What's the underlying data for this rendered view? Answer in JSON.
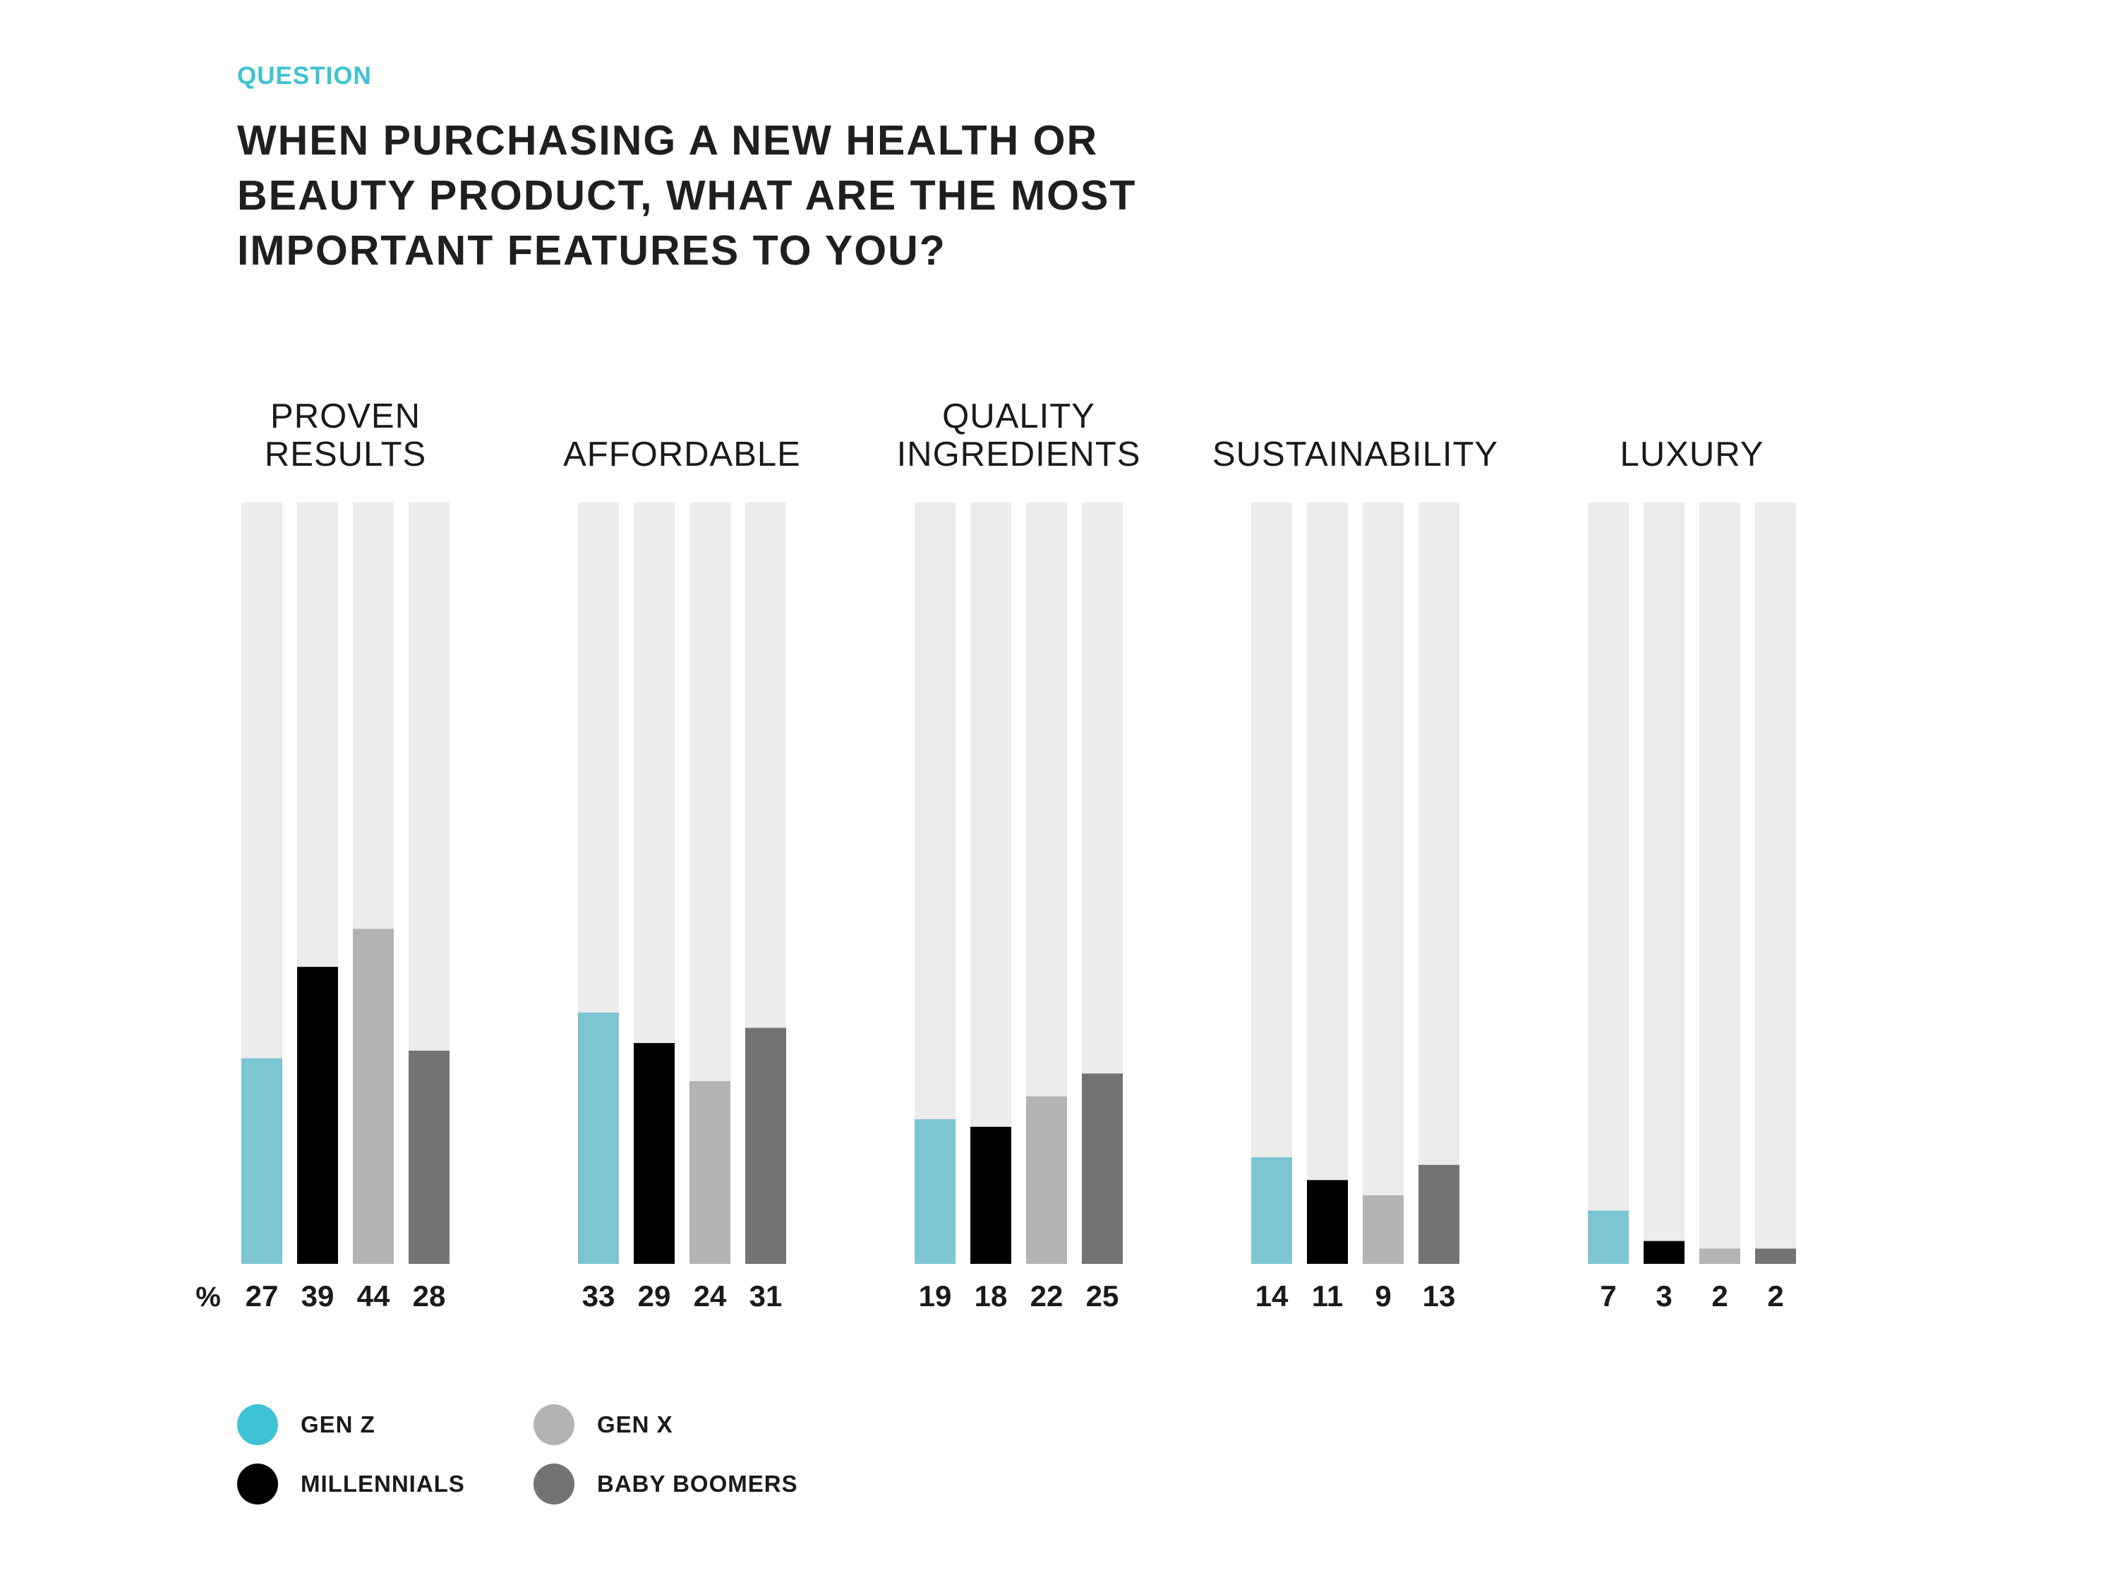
{
  "question_label": "QUESTION",
  "question": "WHEN PURCHASING A NEW HEALTH OR BEAUTY PRODUCT, WHAT ARE THE MOST IMPORTANT FEATURES TO YOU?",
  "colors": {
    "track": "#ececec",
    "gen_z": "#7cc5d3",
    "millennials": "#000000",
    "gen_x": "#b3b3b3",
    "baby_boomers": "#737373",
    "legend_gen_z": "#3ec3d4"
  },
  "legend": [
    {
      "label": "GEN Z",
      "color": "#3ec3d4"
    },
    {
      "label": "GEN X",
      "color": "#b3b3b3"
    },
    {
      "label": "MILLENNIALS",
      "color": "#000000"
    },
    {
      "label": "BABY BOOMERS",
      "color": "#737373"
    }
  ],
  "chart_data": {
    "type": "bar",
    "unit_label": "%",
    "categories": [
      [
        "PROVEN",
        "RESULTS"
      ],
      [
        "AFFORDABLE"
      ],
      [
        "QUALITY",
        "INGREDIENTS"
      ],
      [
        "SUSTAINABILITY"
      ],
      [
        "LUXURY"
      ]
    ],
    "series": [
      {
        "name": "GEN Z",
        "color": "#7cc5d3",
        "values": [
          27,
          33,
          19,
          14,
          7
        ]
      },
      {
        "name": "MILLENNIALS",
        "color": "#000000",
        "values": [
          39,
          29,
          18,
          11,
          3
        ]
      },
      {
        "name": "GEN X",
        "color": "#b3b3b3",
        "values": [
          44,
          24,
          22,
          9,
          2
        ]
      },
      {
        "name": "BABY BOOMERS",
        "color": "#737373",
        "values": [
          28,
          31,
          25,
          13,
          2
        ]
      }
    ],
    "ylim": [
      0,
      100
    ],
    "grid": false,
    "legend_position": "bottom-left"
  }
}
